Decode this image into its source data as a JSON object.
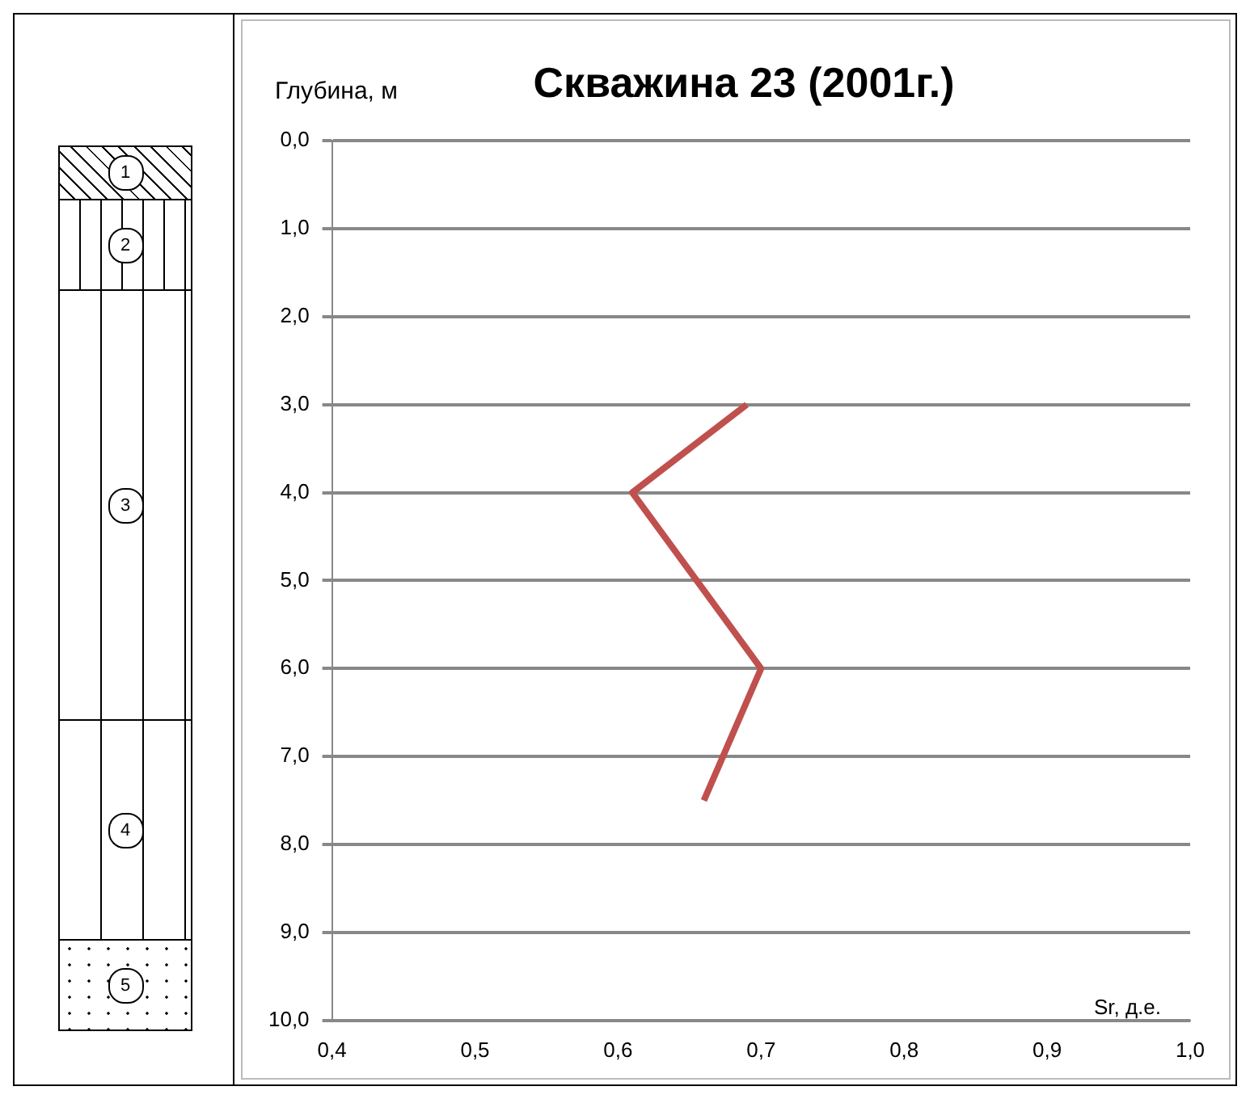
{
  "chart_data": {
    "type": "line",
    "title": "Скважина 23 (2001г.)",
    "xlabel": "Sr, д.е.",
    "ylabel": "Глубина, м",
    "series": [
      {
        "color": "#c0504d",
        "x": [
          0.69,
          0.61,
          0.7,
          0.66
        ],
        "values": [
          3.0,
          4.0,
          6.0,
          7.5
        ]
      }
    ],
    "xlim": [
      0.4,
      1.0
    ],
    "xticks": [
      {
        "value": 0.4,
        "label": "0,4"
      },
      {
        "value": 0.5,
        "label": "0,5"
      },
      {
        "value": 0.6,
        "label": "0,6"
      },
      {
        "value": 0.7,
        "label": "0,7"
      },
      {
        "value": 0.8,
        "label": "0,8"
      },
      {
        "value": 0.9,
        "label": "0,9"
      },
      {
        "value": 1.0,
        "label": "1,0"
      }
    ],
    "ylim": [
      10,
      0
    ],
    "yticks": [
      {
        "value": 0,
        "label": "0,0"
      },
      {
        "value": 1,
        "label": "1,0"
      },
      {
        "value": 2,
        "label": "2,0"
      },
      {
        "value": 3,
        "label": "3,0"
      },
      {
        "value": 4,
        "label": "4,0"
      },
      {
        "value": 5,
        "label": "5,0"
      },
      {
        "value": 6,
        "label": "6,0"
      },
      {
        "value": 7,
        "label": "7,0"
      },
      {
        "value": 8,
        "label": "8,0"
      },
      {
        "value": 9,
        "label": "9,0"
      },
      {
        "value": 10,
        "label": "10,0"
      }
    ],
    "grid": "y",
    "legend": false,
    "marker": "none",
    "line_style": "solid",
    "annotations": [
      "1",
      "2",
      "3",
      "4",
      "5"
    ]
  }
}
